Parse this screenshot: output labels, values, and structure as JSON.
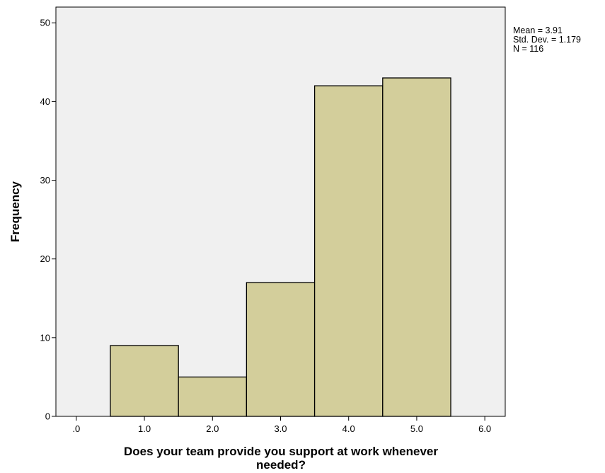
{
  "chart_data": {
    "type": "bar",
    "subtype": "histogram",
    "bins": [
      {
        "center": 1.0,
        "start": 0.5,
        "end": 1.5,
        "value": 9
      },
      {
        "center": 2.0,
        "start": 1.5,
        "end": 2.5,
        "value": 5
      },
      {
        "center": 3.0,
        "start": 2.5,
        "end": 3.5,
        "value": 17
      },
      {
        "center": 4.0,
        "start": 3.5,
        "end": 4.5,
        "value": 42
      },
      {
        "center": 5.0,
        "start": 4.5,
        "end": 5.5,
        "value": 43
      }
    ],
    "title": "",
    "xlabel_lines": [
      "Does your team provide you support at work whenever",
      "needed?"
    ],
    "ylabel": "Frequency",
    "xlim": [
      -0.3,
      6.3
    ],
    "ylim": [
      0,
      52
    ],
    "x_ticks": [
      0,
      1,
      2,
      3,
      4,
      5,
      6
    ],
    "x_tick_labels": [
      ".0",
      "1.0",
      "2.0",
      "3.0",
      "4.0",
      "5.0",
      "6.0"
    ],
    "y_ticks": [
      0,
      10,
      20,
      30,
      40,
      50
    ],
    "y_tick_labels": [
      "0",
      "10",
      "20",
      "30",
      "40",
      "50"
    ],
    "stats": [
      "Mean = 3.91",
      "Std. Dev. = 1.179",
      "N = 116"
    ],
    "grid": false,
    "legend": "none",
    "colors": {
      "plot_background": "#f0f0f0",
      "bar_fill": "#d3ce9b",
      "bar_stroke": "#000000",
      "axis": "#000000"
    }
  }
}
